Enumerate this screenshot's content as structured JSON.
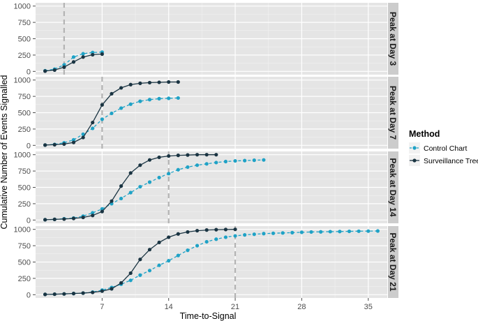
{
  "chart_data": {
    "type": "line",
    "xlabel": "Time-to-Signal",
    "ylabel": "Cumulative Number of Events Signalled",
    "xlim": [
      0,
      37
    ],
    "ylim": [
      -50,
      1050
    ],
    "x_ticks": [
      7,
      14,
      21,
      28,
      35
    ],
    "y_ticks": [
      0,
      250,
      500,
      750,
      1000
    ],
    "legend": {
      "title": "Method",
      "position": "right",
      "entries": [
        {
          "name": "Control Chart",
          "color": "#1fa2c6"
        },
        {
          "name": "Surveillance Tree",
          "color": "#1a3442"
        }
      ]
    },
    "panels": [
      {
        "label": "Peak at Day 3",
        "peak_day": 3,
        "series": [
          {
            "name": "Control Chart",
            "x": [
              1,
              2,
              3,
              4,
              5,
              6,
              7
            ],
            "y": [
              10,
              35,
              100,
              220,
              270,
              290,
              295
            ]
          },
          {
            "name": "Surveillance Tree",
            "x": [
              1,
              2,
              3,
              4,
              5,
              6,
              7
            ],
            "y": [
              5,
              20,
              65,
              145,
              220,
              255,
              265
            ]
          }
        ]
      },
      {
        "label": "Peak at Day 7",
        "peak_day": 7,
        "series": [
          {
            "name": "Control Chart",
            "x": [
              1,
              2,
              3,
              4,
              5,
              6,
              7,
              8,
              9,
              10,
              11,
              12,
              13,
              14,
              15
            ],
            "y": [
              5,
              15,
              40,
              85,
              170,
              260,
              400,
              490,
              570,
              630,
              675,
              700,
              715,
              720,
              725
            ]
          },
          {
            "name": "Surveillance Tree",
            "x": [
              1,
              2,
              3,
              4,
              5,
              6,
              7,
              8,
              9,
              10,
              11,
              12,
              13,
              14,
              15
            ],
            "y": [
              5,
              10,
              20,
              45,
              120,
              350,
              620,
              790,
              880,
              930,
              950,
              960,
              965,
              970,
              970
            ]
          }
        ]
      },
      {
        "label": "Peak at Day 14",
        "peak_day": 14,
        "series": [
          {
            "name": "Control Chart",
            "x": [
              1,
              2,
              3,
              4,
              5,
              6,
              7,
              8,
              9,
              10,
              11,
              12,
              13,
              14,
              15,
              16,
              17,
              18,
              19,
              20,
              21,
              22,
              23,
              24
            ],
            "y": [
              5,
              10,
              20,
              30,
              60,
              110,
              170,
              250,
              330,
              420,
              510,
              580,
              650,
              710,
              770,
              810,
              840,
              860,
              880,
              895,
              905,
              910,
              915,
              920
            ]
          },
          {
            "name": "Surveillance Tree",
            "x": [
              1,
              2,
              3,
              4,
              5,
              6,
              7,
              8,
              9,
              10,
              11,
              12,
              13,
              14,
              15,
              16,
              17,
              18,
              19
            ],
            "y": [
              5,
              10,
              15,
              25,
              40,
              70,
              130,
              290,
              520,
              720,
              840,
              920,
              960,
              980,
              990,
              995,
              1000,
              1000,
              1000
            ]
          }
        ]
      },
      {
        "label": "Peak at Day 21",
        "peak_day": 21,
        "series": [
          {
            "name": "Control Chart",
            "x": [
              1,
              2,
              3,
              4,
              5,
              6,
              7,
              8,
              9,
              10,
              11,
              12,
              13,
              14,
              15,
              16,
              17,
              18,
              19,
              20,
              21,
              22,
              23,
              24,
              25,
              26,
              27,
              28,
              29,
              30,
              31,
              32,
              33,
              34,
              35,
              36
            ],
            "y": [
              5,
              8,
              12,
              18,
              25,
              40,
              70,
              110,
              160,
              220,
              300,
              370,
              450,
              520,
              600,
              680,
              750,
              810,
              850,
              880,
              900,
              915,
              925,
              935,
              940,
              945,
              950,
              955,
              960,
              962,
              965,
              967,
              970,
              972,
              973,
              975
            ]
          },
          {
            "name": "Surveillance Tree",
            "x": [
              1,
              2,
              3,
              4,
              5,
              6,
              7,
              8,
              9,
              10,
              11,
              12,
              13,
              14,
              15,
              16,
              17,
              18,
              19,
              20,
              21
            ],
            "y": [
              5,
              8,
              12,
              18,
              25,
              35,
              55,
              90,
              180,
              330,
              540,
              690,
              800,
              880,
              930,
              960,
              980,
              990,
              995,
              998,
              1000
            ]
          }
        ]
      }
    ]
  }
}
